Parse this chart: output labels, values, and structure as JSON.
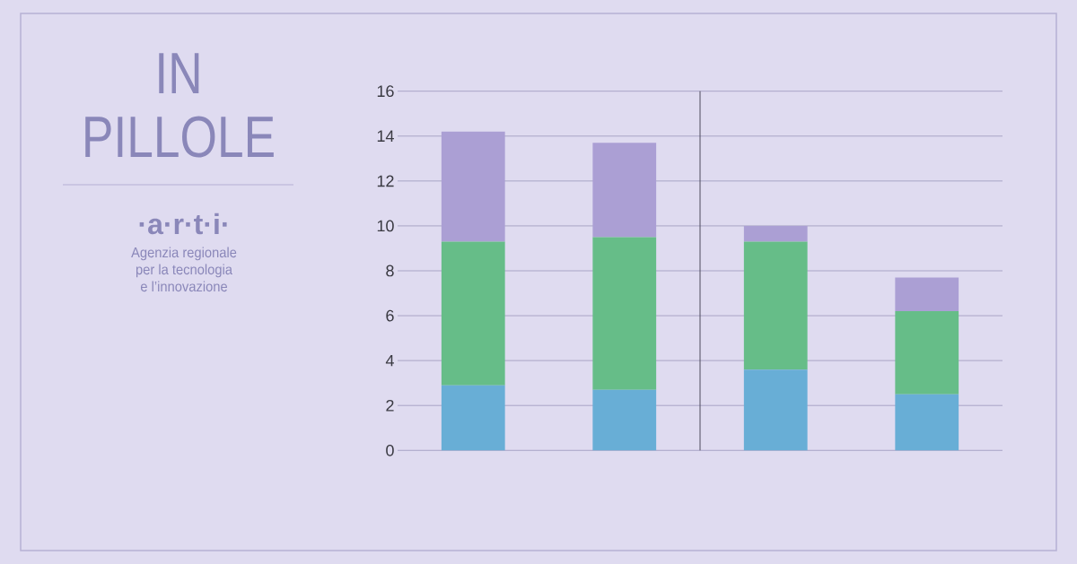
{
  "chart_data": {
    "type": "bar",
    "stacked": true,
    "title": "IN PILLOLE",
    "annotations": [
      "·a·r·t·i·",
      "Agenzia regionale per la tecnologia e l’innovazione"
    ],
    "categories": [
      null,
      null,
      null,
      null
    ],
    "series": [
      {
        "color": "#68aed6",
        "values": [
          2.9,
          2.7,
          3.6,
          2.5
        ]
      },
      {
        "color": "#66bd88",
        "values": [
          6.4,
          6.8,
          5.7,
          3.7
        ]
      },
      {
        "color": "#ab9fd4",
        "values": [
          4.9,
          4.2,
          0.7,
          1.5
        ]
      }
    ],
    "ylim": [
      0,
      16
    ],
    "yticks": [
      0,
      2,
      4,
      6,
      8,
      10,
      12,
      14,
      16
    ],
    "grid": "y"
  }
}
